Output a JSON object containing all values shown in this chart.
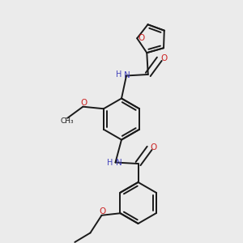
{
  "bg": "#ebebeb",
  "bond_color": "#1a1a1a",
  "N_color": "#4444bb",
  "O_color": "#cc2222",
  "lw": 1.4,
  "dbo": 0.012,
  "figsize": [
    3.0,
    3.0
  ],
  "dpi": 100,
  "xlim": [
    0.0,
    1.0
  ],
  "ylim": [
    0.0,
    1.0
  ]
}
